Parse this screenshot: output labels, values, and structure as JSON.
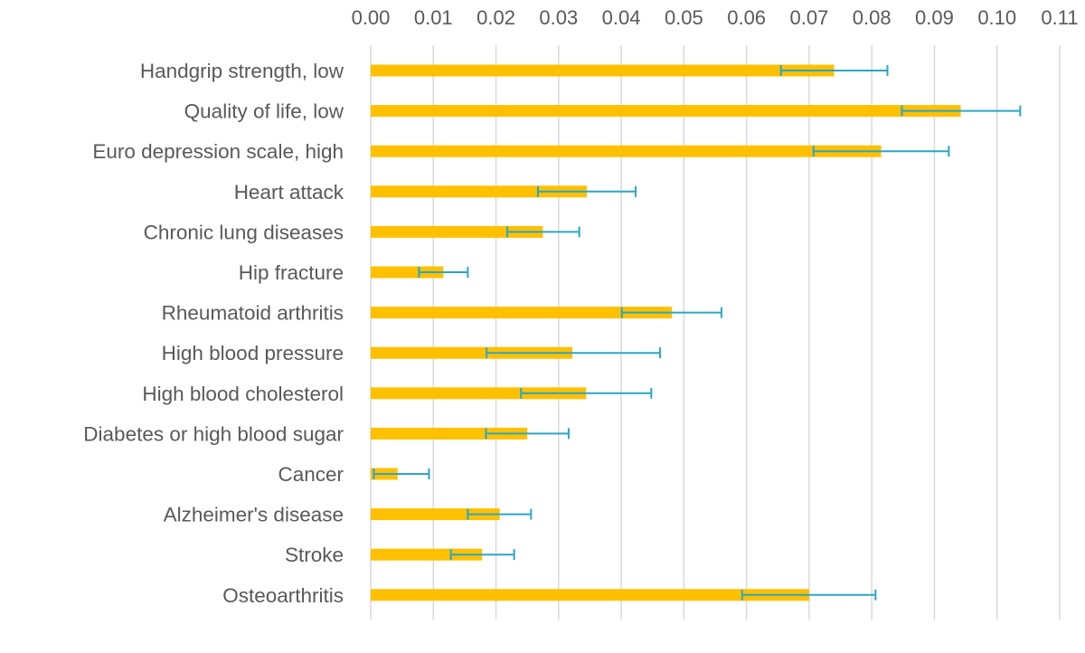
{
  "chart_data": {
    "type": "bar",
    "orientation": "horizontal",
    "title": "",
    "xlabel": "",
    "ylabel": "",
    "xlim": [
      0,
      0.11
    ],
    "x_ticks": [
      "0.00",
      "0.01",
      "0.02",
      "0.03",
      "0.04",
      "0.05",
      "0.06",
      "0.07",
      "0.08",
      "0.09",
      "0.10",
      "0.11"
    ],
    "x_tick_values": [
      0.0,
      0.01,
      0.02,
      0.03,
      0.04,
      0.05,
      0.06,
      0.07,
      0.08,
      0.09,
      0.1,
      0.11
    ],
    "x_axis_position": "top",
    "grid": true,
    "legend": "none",
    "categories": [
      "Handgrip strength, low",
      "Quality of life, low",
      "Euro depression scale, high",
      "Heart attack",
      "Chronic lung diseases",
      "Hip fracture",
      "Rheumatoid arthritis",
      "High blood pressure",
      "High blood cholesterol",
      "Diabetes or high blood sugar",
      "Cancer",
      "Alzheimer's disease",
      "Stroke",
      "Osteoarthritis"
    ],
    "values": [
      0.074,
      0.0942,
      0.0815,
      0.0345,
      0.0275,
      0.0116,
      0.0481,
      0.0322,
      0.0344,
      0.025,
      0.0043,
      0.0206,
      0.0178,
      0.07
    ],
    "error_low": [
      0.0655,
      0.0848,
      0.0707,
      0.0267,
      0.0218,
      0.0077,
      0.0401,
      0.0185,
      0.024,
      0.0184,
      0.0005,
      0.0155,
      0.0128,
      0.0593
    ],
    "error_high": [
      0.0825,
      0.1037,
      0.0923,
      0.0423,
      0.0333,
      0.0155,
      0.056,
      0.0462,
      0.0448,
      0.0316,
      0.0093,
      0.0256,
      0.0229,
      0.0806
    ],
    "colors": {
      "bar": "#FFC000",
      "error": "#2AA6C5",
      "grid": "#D9D9D9",
      "text": "#595959"
    }
  }
}
